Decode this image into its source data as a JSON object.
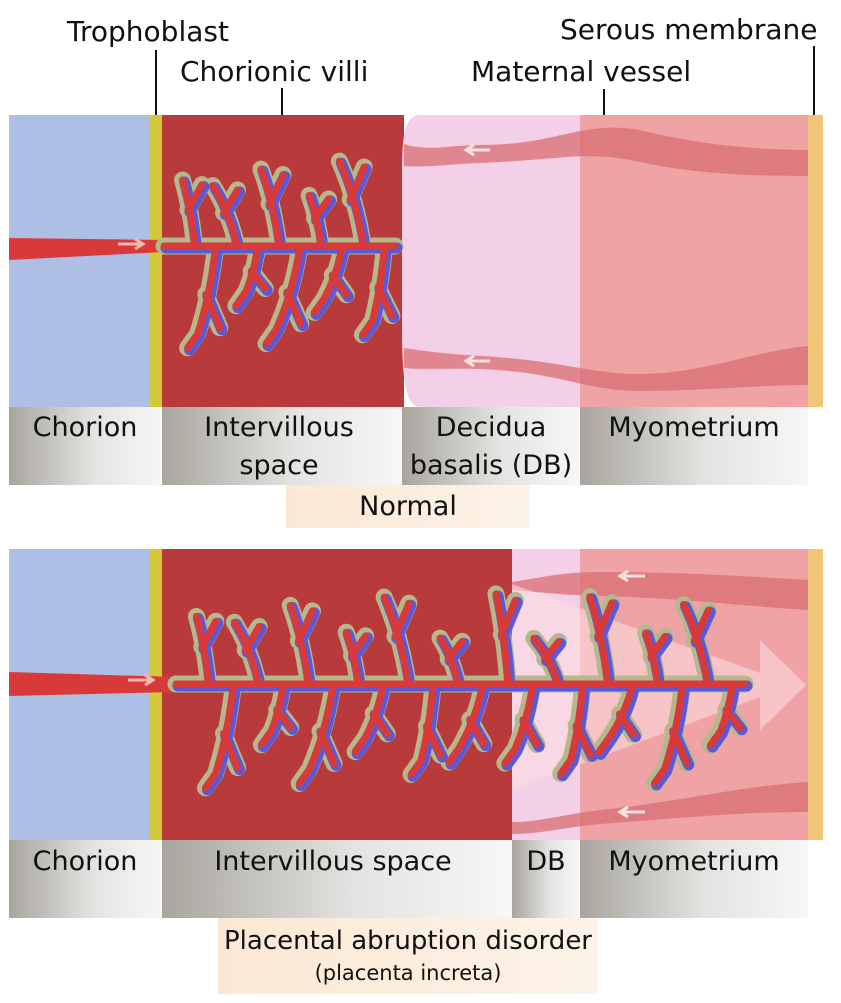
{
  "top_labels": {
    "trophoblast": "Trophoblast",
    "chorionic_villi": "Chorionic villi",
    "maternal_vessel": "Maternal vessel",
    "serous_membrane": "Serous membrane"
  },
  "normal": {
    "regions": {
      "chorion": "Chorion",
      "intervillous_1": "Intervillous",
      "intervillous_2": "space",
      "decidua_1": "Decidua",
      "decidua_2": "basalis (DB)",
      "myometrium": "Myometrium"
    },
    "caption": "Normal"
  },
  "abruption": {
    "regions": {
      "chorion": "Chorion",
      "intervillous": "Intervillous space",
      "db": "DB",
      "myometrium": "Myometrium"
    },
    "caption_title": "Placental abruption disorder",
    "caption_subtitle": "(placenta increta)"
  },
  "colors": {
    "chorion": "#aebfe6",
    "trophoblast": "#d2c838",
    "intervillous": "#b93a3a",
    "decidua": "#f4cfe8",
    "myometrium": "#f0a3a5",
    "vessel": "#d86d72",
    "serous": "#f0c57a",
    "villus_core": "#d83a3a",
    "villus_vein": "#5a5ad8",
    "villus_outline": "#b5b88a",
    "caption_bg": "#fbe6cf"
  }
}
